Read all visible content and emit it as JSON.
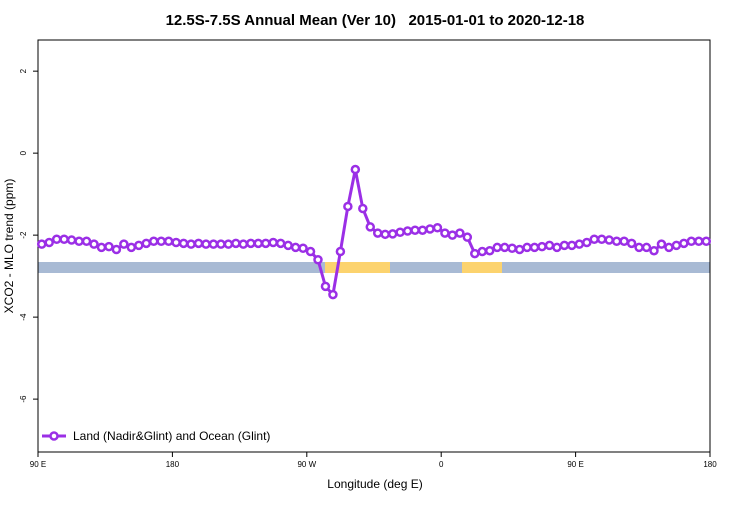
{
  "chart_data": {
    "type": "line",
    "title": "12.5S-7.5S Annual Mean (Ver 10)   2015-01-01 to 2020-12-18",
    "x_label": "Longitude (deg E)",
    "y_label": "XCO2 - MLO trend (ppm)",
    "x": [
      92.5,
      97.5,
      102.5,
      107.5,
      112.5,
      117.5,
      122.5,
      127.5,
      132.5,
      137.5,
      142.5,
      147.5,
      152.5,
      157.5,
      162.5,
      167.5,
      172.5,
      177.5,
      182.5,
      187.5,
      192.5,
      197.5,
      202.5,
      207.5,
      212.5,
      217.5,
      222.5,
      227.5,
      232.5,
      237.5,
      242.5,
      247.5,
      252.5,
      257.5,
      262.5,
      267.5,
      272.5,
      277.5,
      282.5,
      287.5,
      292.5,
      297.5,
      302.5,
      307.5,
      312.5,
      317.5,
      322.5,
      327.5,
      332.5,
      337.5,
      342.5,
      347.5,
      352.5,
      357.5,
      362.5,
      367.5,
      372.5,
      377.5,
      382.5,
      387.5,
      392.5,
      397.5,
      402.5,
      407.5,
      412.5,
      417.5,
      422.5,
      427.5,
      432.5,
      437.5,
      442.5,
      447.5,
      452.5,
      457.5,
      462.5,
      467.5,
      472.5,
      477.5,
      482.5,
      487.5,
      492.5,
      497.5,
      502.5,
      507.5,
      512.5,
      517.5,
      522.5,
      527.5,
      532.5,
      537.5
    ],
    "series": [
      {
        "name": "Land (Nadir&Glint) and Ocean (Glint)",
        "color": "#9b2fe6",
        "values": [
          -2.22,
          -2.18,
          -2.1,
          -2.1,
          -2.12,
          -2.15,
          -2.15,
          -2.22,
          -2.3,
          -2.28,
          -2.35,
          -2.22,
          -2.3,
          -2.25,
          -2.2,
          -2.15,
          -2.15,
          -2.15,
          -2.18,
          -2.2,
          -2.22,
          -2.2,
          -2.22,
          -2.22,
          -2.22,
          -2.22,
          -2.2,
          -2.22,
          -2.2,
          -2.2,
          -2.2,
          -2.18,
          -2.2,
          -2.25,
          -2.3,
          -2.32,
          -2.4,
          -2.6,
          -3.25,
          -3.45,
          -2.4,
          -1.3,
          -0.4,
          -1.35,
          -1.8,
          -1.95,
          -1.98,
          -1.97,
          -1.93,
          -1.9,
          -1.88,
          -1.88,
          -1.85,
          -1.82,
          -1.95,
          -2.0,
          -1.95,
          -2.05,
          -2.45,
          -2.4,
          -2.38,
          -2.3,
          -2.3,
          -2.32,
          -2.35,
          -2.3,
          -2.3,
          -2.28,
          -2.25,
          -2.3,
          -2.25,
          -2.25,
          -2.22,
          -2.18,
          -2.1,
          -2.1,
          -2.12,
          -2.15,
          -2.15,
          -2.2,
          -2.3,
          -2.3,
          -2.38,
          -2.22,
          -2.3,
          -2.25,
          -2.2,
          -2.15,
          -2.15,
          -2.15
        ]
      }
    ],
    "xlim": [
      90,
      540
    ],
    "xticks": [
      {
        "value": 90,
        "label": "90 E"
      },
      {
        "value": 180,
        "label": "180"
      },
      {
        "value": 270,
        "label": "90 W"
      },
      {
        "value": 360,
        "label": "0"
      },
      {
        "value": 450,
        "label": "90 E"
      },
      {
        "value": 540,
        "label": "180"
      }
    ],
    "ylim": [
      -7.29,
      2.76
    ],
    "yticks": [
      -6,
      -4,
      -2,
      0,
      2
    ]
  }
}
